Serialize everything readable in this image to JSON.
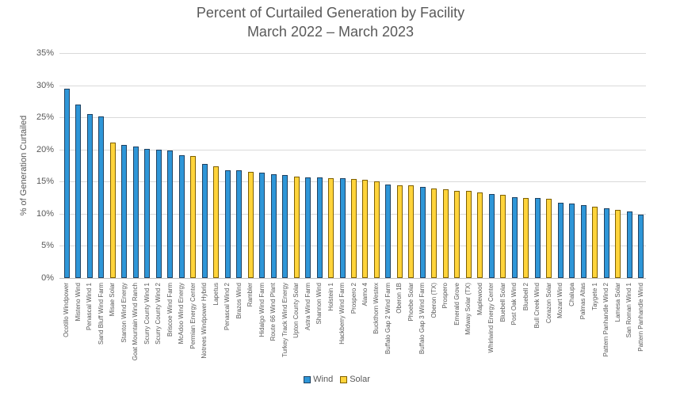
{
  "chart_data": {
    "type": "bar",
    "title": "Percent of Curtailed Generation by Facility",
    "subtitle": "March 2022 – March 2023",
    "ylabel": "% of Generation Curtailed",
    "xlabel": "",
    "ylim": [
      0,
      35
    ],
    "ytick_step": 5,
    "ytick_suffix": "%",
    "grid": true,
    "legend_position": "bottom",
    "legend": [
      "Wind",
      "Solar"
    ],
    "series_colors": {
      "Wind": "#2E96D8",
      "Solar": "#FFD43B"
    },
    "series_borders": {
      "Wind": "#1F4262",
      "Solar": "#7F6000"
    },
    "categories": [
      "Ocotillo Windpower",
      "Misteno Wind",
      "Penascal Wind 1",
      "Sand Bluff Wind Farm",
      "Misae Solar",
      "Stanton Wind Energy",
      "Goat Mountain Wind Ranch",
      "Scurry County Wind 1",
      "Scurry County Wind 2",
      "Briscoe Wind Farm",
      "McAdoo Wind Energy",
      "Permian Energy Center",
      "Notrees Windpower Hybrid",
      "Lapetus",
      "Penascal Wind 2",
      "Brazos Wind",
      "Rambler",
      "Hidalgo Wind Farm",
      "Route 66 Wind Plant",
      "Turkey Track Wind Energy",
      "Upton County Solar",
      "Astra Wind Farm",
      "Shannon Wind",
      "Holstein 1",
      "Hackberry Wind Farm",
      "Prospero 2",
      "Alamo 4",
      "Buckthorn Westex",
      "Buffalo Gap 2 Wind Farm",
      "Oberon 1B",
      "Phoebe Solar",
      "Buffalo Gap 3 Wind Farm",
      "Oberon (TX)",
      "Prospero",
      "Emerald Grove",
      "Midway Solar (TX)",
      "Maplewood",
      "Whirlwind Energy Center",
      "Bluebell Solar",
      "Post Oak Wind",
      "Bluebell 2",
      "Bull Creek Wind",
      "Corazon Solar",
      "Mozart Wind",
      "Chalupa",
      "Palmas Altas",
      "Taygete 1",
      "Pattern Panhandle Wind 2",
      "Lamesa Solar",
      "San Roman Wind 1",
      "Pattern Panhandle Wind"
    ],
    "values": [
      29.5,
      27.0,
      25.5,
      25.2,
      21.1,
      20.7,
      20.4,
      20.1,
      20.0,
      19.9,
      19.1,
      19.0,
      17.7,
      17.4,
      16.8,
      16.7,
      16.5,
      16.4,
      16.2,
      16.0,
      15.8,
      15.7,
      15.6,
      15.5,
      15.5,
      15.4,
      15.3,
      15.0,
      14.5,
      14.4,
      14.4,
      14.2,
      13.9,
      13.8,
      13.5,
      13.5,
      13.3,
      13.1,
      13.0,
      12.6,
      12.5,
      12.5,
      12.3,
      11.7,
      11.6,
      11.3,
      11.1,
      10.8,
      10.6,
      10.4,
      9.8
    ],
    "point_series": [
      "Wind",
      "Wind",
      "Wind",
      "Wind",
      "Solar",
      "Wind",
      "Wind",
      "Wind",
      "Wind",
      "Wind",
      "Wind",
      "Solar",
      "Wind",
      "Solar",
      "Wind",
      "Wind",
      "Solar",
      "Wind",
      "Wind",
      "Wind",
      "Solar",
      "Wind",
      "Wind",
      "Solar",
      "Wind",
      "Solar",
      "Solar",
      "Solar",
      "Wind",
      "Solar",
      "Solar",
      "Wind",
      "Solar",
      "Solar",
      "Solar",
      "Solar",
      "Solar",
      "Wind",
      "Solar",
      "Wind",
      "Solar",
      "Wind",
      "Solar",
      "Wind",
      "Wind",
      "Wind",
      "Solar",
      "Wind",
      "Solar",
      "Wind",
      "Wind"
    ]
  }
}
